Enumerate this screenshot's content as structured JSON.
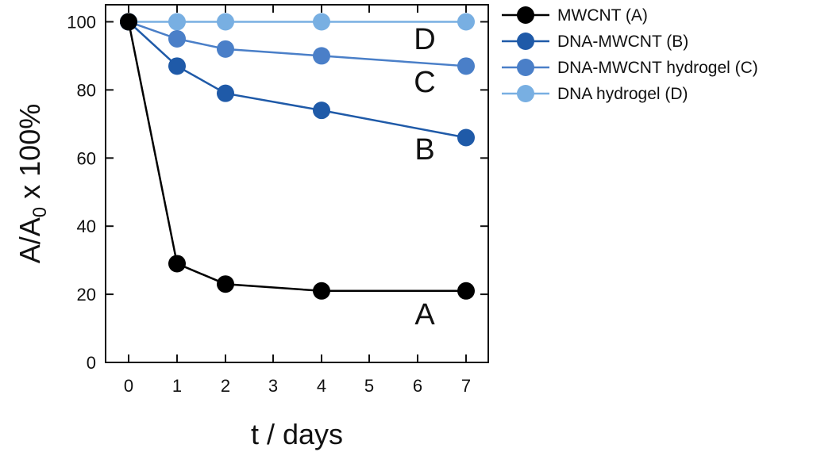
{
  "chart_data": {
    "type": "line",
    "title": "",
    "xlabel": "t / days",
    "ylabel": "A/A₀ x 100%",
    "xlim": [
      -0.5,
      7.5
    ],
    "ylim": [
      0,
      105
    ],
    "x_ticks": [
      0,
      1,
      2,
      3,
      4,
      5,
      6,
      7
    ],
    "y_ticks": [
      0,
      20,
      40,
      60,
      80,
      100
    ],
    "legend_position": "top-right outside",
    "series": [
      {
        "name": "MWCNT (A)",
        "tag": "A",
        "color": "#000000",
        "x": [
          0,
          1,
          2,
          4,
          7
        ],
        "values": [
          100,
          29,
          23,
          21,
          21
        ]
      },
      {
        "name": "DNA-MWCNT (B)",
        "tag": "B",
        "color": "#1f5aa8",
        "x": [
          0,
          1,
          2,
          4,
          7
        ],
        "values": [
          100,
          87,
          79,
          74,
          66
        ]
      },
      {
        "name": "DNA-MWCNT hydrogel (C)",
        "tag": "C",
        "color": "#4a7fc8",
        "x": [
          0,
          1,
          2,
          4,
          7
        ],
        "values": [
          100,
          95,
          92,
          90,
          87
        ]
      },
      {
        "name": "DNA hydrogel (D)",
        "tag": "D",
        "color": "#78afe2",
        "x": [
          0,
          1,
          2,
          4,
          7
        ],
        "values": [
          100,
          100,
          100,
          100,
          100
        ]
      }
    ],
    "series_tags": [
      "D",
      "C",
      "B",
      "A"
    ]
  }
}
